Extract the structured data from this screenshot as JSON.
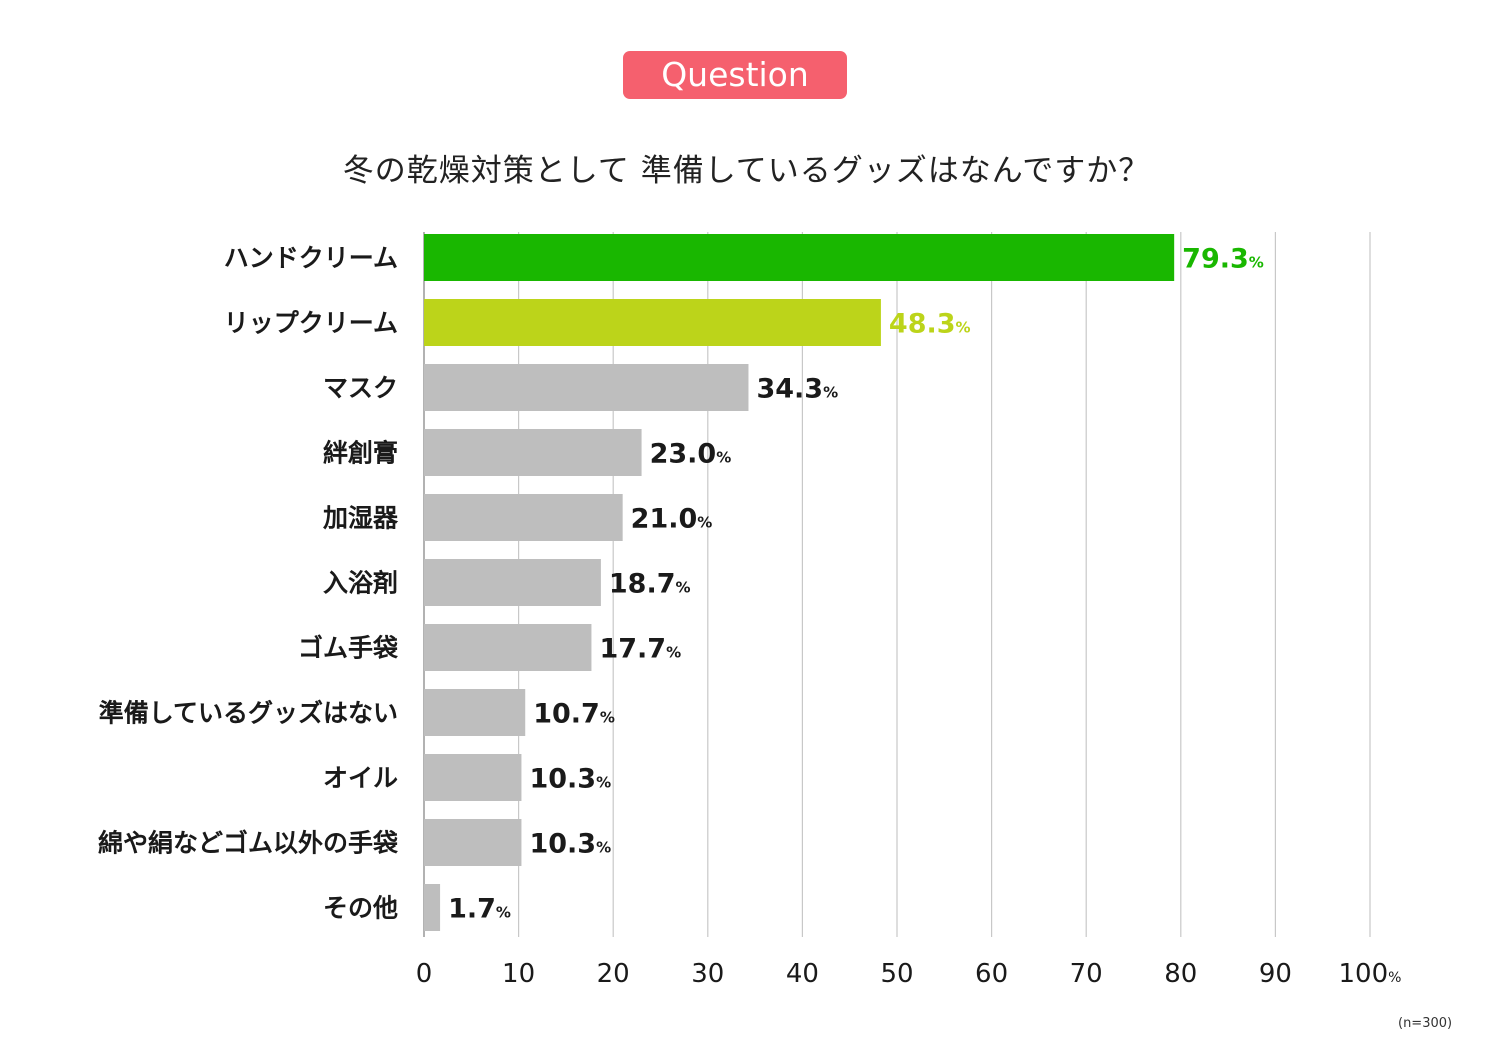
{
  "badge": "Question",
  "question": "冬の乾燥対策として 準備しているグッズはなんですか？",
  "footnote": "(n=300)",
  "colors": {
    "highlight1": "#19b700",
    "highlight2": "#bcd41a",
    "default": "#bebebe",
    "badge": "#f5606e"
  },
  "chart_data": {
    "type": "bar",
    "orientation": "horizontal",
    "categories": [
      "ハンドクリーム",
      "リップクリーム",
      "マスク",
      "絆創膏",
      "加湿器",
      "入浴剤",
      "ゴム手袋",
      "準備しているグッズはない",
      "オイル",
      "綿や絹などゴム以外の手袋",
      "その他"
    ],
    "values": [
      79.3,
      48.3,
      34.3,
      23.0,
      21.0,
      18.7,
      17.7,
      10.7,
      10.3,
      10.3,
      1.7
    ],
    "value_labels": [
      "79.3",
      "48.3",
      "34.3",
      "23.0",
      "21.0",
      "18.7",
      "17.7",
      "10.7",
      "10.3",
      "10.3",
      "1.7"
    ],
    "bar_colors": [
      "#19b700",
      "#bcd41a",
      "#bebebe",
      "#bebebe",
      "#bebebe",
      "#bebebe",
      "#bebebe",
      "#bebebe",
      "#bebebe",
      "#bebebe",
      "#bebebe"
    ],
    "label_colors": [
      "#19b700",
      "#bcd41a",
      "#1a1a1a",
      "#1a1a1a",
      "#1a1a1a",
      "#1a1a1a",
      "#1a1a1a",
      "#1a1a1a",
      "#1a1a1a",
      "#1a1a1a",
      "#1a1a1a"
    ],
    "value_unit": "%",
    "xlim": [
      0,
      100
    ],
    "xticks": [
      "0",
      "10",
      "20",
      "30",
      "40",
      "50",
      "60",
      "70",
      "80",
      "90",
      "100"
    ],
    "x_unit": "%",
    "grid": true
  }
}
